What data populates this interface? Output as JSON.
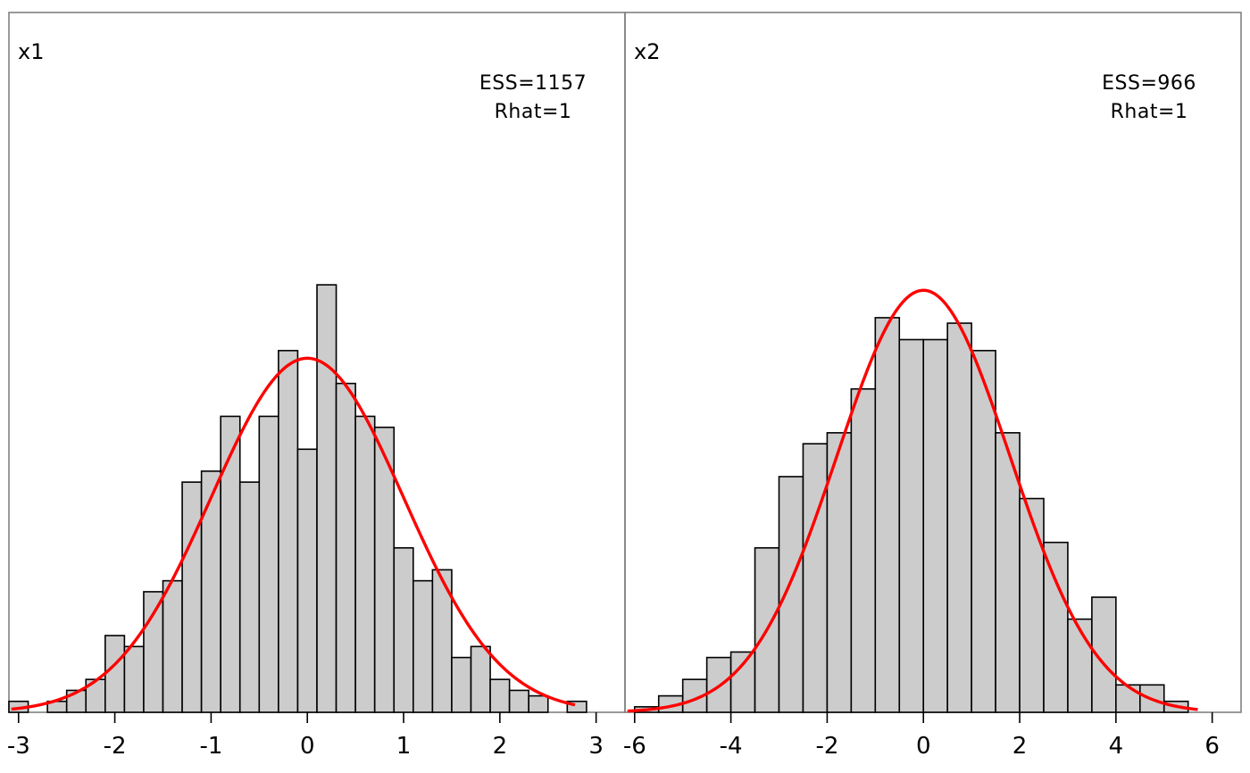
{
  "chart_data": [
    {
      "type": "bar",
      "title": "x1",
      "annotations": [
        "ESS=1157",
        "Rhat=1"
      ],
      "xlim": [
        -3.1,
        3.3
      ],
      "ylim": [
        0,
        50
      ],
      "xticks": [
        "-3",
        "-2",
        "-1",
        "0",
        "1",
        "2",
        "3"
      ],
      "tick_values": [
        -3,
        -2,
        -1,
        0,
        1,
        2,
        3
      ],
      "bin_start": -3.1,
      "bin_width": 0.2,
      "counts": [
        1,
        0,
        1,
        2,
        3,
        7,
        6,
        11,
        12,
        21,
        22,
        27,
        21,
        27,
        33,
        24,
        39,
        30,
        27,
        26,
        15,
        12,
        13,
        5,
        6,
        3,
        2,
        1.5,
        0,
        1
      ],
      "overlay": {
        "type": "normal-density",
        "color": "#ff0000",
        "mean": 0,
        "sd": 1,
        "peak": 32.3
      }
    },
    {
      "type": "bar",
      "title": "x2",
      "annotations": [
        "ESS=966",
        "Rhat=1"
      ],
      "xlim": [
        -6.2,
        6.6
      ],
      "ylim": [
        0,
        50
      ],
      "xticks": [
        "-6",
        "-4",
        "-2",
        "0",
        "2",
        "4",
        "6"
      ],
      "tick_values": [
        -6,
        -4,
        -2,
        0,
        2,
        4,
        6
      ],
      "bin_start": -6,
      "bin_width": 0.5,
      "counts": [
        0.5,
        1.5,
        3,
        5,
        5.5,
        15,
        21.5,
        24.5,
        25.5,
        29.5,
        36,
        34,
        34,
        35.5,
        33,
        25.5,
        19.5,
        15.5,
        8.5,
        10.5,
        2.5,
        2.5,
        1
      ],
      "overlay": {
        "type": "normal-density",
        "color": "#ff0000",
        "mean": 0,
        "sd": 1.8,
        "peak": 38.5
      }
    }
  ]
}
